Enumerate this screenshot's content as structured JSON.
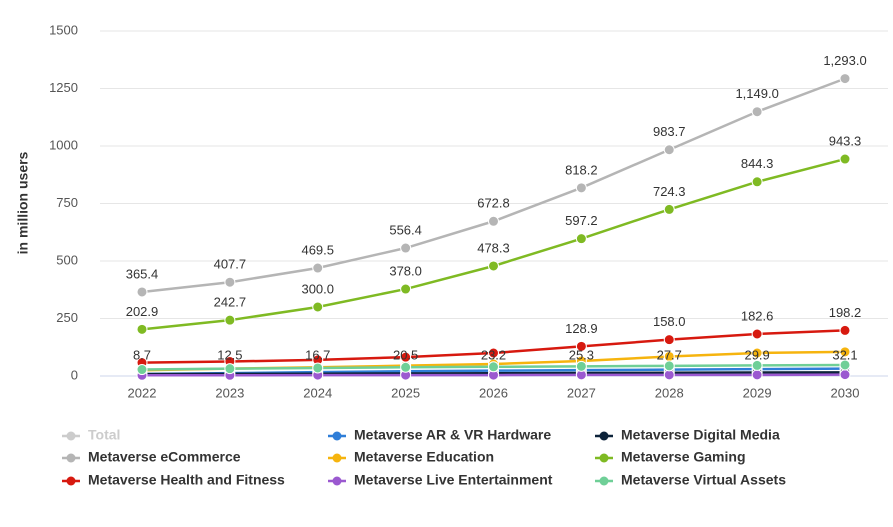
{
  "chart_data": {
    "type": "line",
    "y_label": "in million users",
    "categories": [
      "2022",
      "2023",
      "2024",
      "2025",
      "2026",
      "2027",
      "2028",
      "2029",
      "2030"
    ],
    "ylim": [
      0,
      1500
    ],
    "yticks": [
      0,
      250,
      500,
      750,
      1000,
      1250,
      1500
    ],
    "grid": true,
    "series": [
      {
        "name": "Total",
        "color": "#cccccc",
        "hidden": true
      },
      {
        "name": "Metaverse AR & VR Hardware",
        "color": "#2f7ed8",
        "values": [
          8.7,
          12.5,
          16.7,
          20.5,
          23.2,
          25.3,
          27.7,
          29.9,
          32.1
        ],
        "value_labels": [
          "8.7",
          "12.5",
          "16.7",
          "20.5",
          "23.2",
          "25.3",
          "27.7",
          "29.9",
          "32.1"
        ]
      },
      {
        "name": "Metaverse Digital Media",
        "color": "#0d233a",
        "values": [
          8,
          9,
          10,
          11,
          12,
          13,
          14,
          15,
          16
        ]
      },
      {
        "name": "Metaverse eCommerce",
        "color": "#b5b5b5",
        "values": [
          365.4,
          407.7,
          469.5,
          556.4,
          672.8,
          818.2,
          983.7,
          1149.0,
          1293.0
        ],
        "value_labels": [
          "365.4",
          "407.7",
          "469.5",
          "556.4",
          "672.8",
          "818.2",
          "983.7",
          "1,149.0",
          "1,293.0"
        ]
      },
      {
        "name": "Metaverse Education",
        "color": "#f6b40e",
        "values": [
          25,
          32,
          38,
          45,
          52,
          65,
          85,
          100,
          105
        ]
      },
      {
        "name": "Metaverse Gaming",
        "color": "#7fba23",
        "values": [
          202.9,
          242.7,
          300.0,
          378.0,
          478.3,
          597.2,
          724.3,
          844.3,
          943.3
        ],
        "value_labels": [
          "202.9",
          "242.7",
          "300.0",
          "378.0",
          "478.3",
          "597.2",
          "724.3",
          "844.3",
          "943.3"
        ]
      },
      {
        "name": "Metaverse Health and Fitness",
        "color": "#d7190f",
        "values": [
          58,
          63,
          70,
          82,
          100,
          128.9,
          158.0,
          182.6,
          198.2
        ],
        "value_labels": [
          null,
          null,
          null,
          null,
          null,
          "128.9",
          "158.0",
          "182.6",
          "198.2"
        ]
      },
      {
        "name": "Metaverse Live Entertainment",
        "color": "#9b59d0",
        "values": [
          3,
          3,
          4,
          4,
          4,
          5,
          5,
          5,
          6
        ]
      },
      {
        "name": "Metaverse Virtual Assets",
        "color": "#6fcf97",
        "values": [
          28,
          32,
          35,
          38,
          40,
          42,
          44,
          46,
          48
        ]
      }
    ]
  }
}
